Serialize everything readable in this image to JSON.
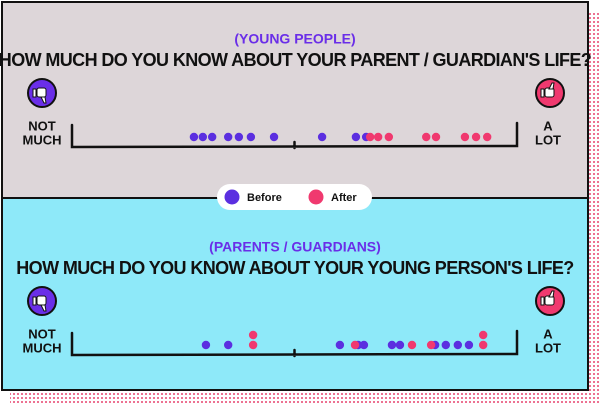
{
  "chart_data": [
    {
      "type": "scatter",
      "kicker": "(YOUNG PEOPLE)",
      "title": "HOW MUCH DO YOU KNOW ABOUT YOUR PARENT / GUARDIAN'S LIFE?",
      "low_label": [
        "NOT",
        "MUCH"
      ],
      "high_label": [
        "A",
        "LOT"
      ],
      "xlim": [
        0,
        10
      ],
      "series": [
        {
          "name": "Before",
          "color": "#5b2fe0",
          "values": [
            2.74,
            2.94,
            3.15,
            3.51,
            3.75,
            4.02,
            4.54,
            5.62,
            6.38,
            6.61
          ]
        },
        {
          "name": "After",
          "color": "#f0396f",
          "values": [
            6.7,
            6.88,
            7.12,
            7.96,
            8.18,
            8.83,
            9.08,
            9.33
          ]
        }
      ]
    },
    {
      "type": "scatter",
      "kicker": "(PARENTS / GUARDIANS)",
      "title": "HOW MUCH DO YOU KNOW ABOUT YOUR YOUNG PERSON'S LIFE?",
      "low_label": [
        "NOT",
        "MUCH"
      ],
      "high_label": [
        "A",
        "LOT"
      ],
      "xlim": [
        0,
        10
      ],
      "series": [
        {
          "color": "#5b2fe0",
          "values": [
            3.01,
            3.51,
            6.02,
            6.43,
            6.56,
            7.19,
            7.37,
            8.16,
            8.4,
            8.67,
            8.92
          ]
        },
        {
          "color": "#f0396f",
          "values": [
            4.07,
            4.07,
            6.36,
            7.64,
            8.07,
            9.24,
            9.24
          ]
        }
      ]
    }
  ]
}
